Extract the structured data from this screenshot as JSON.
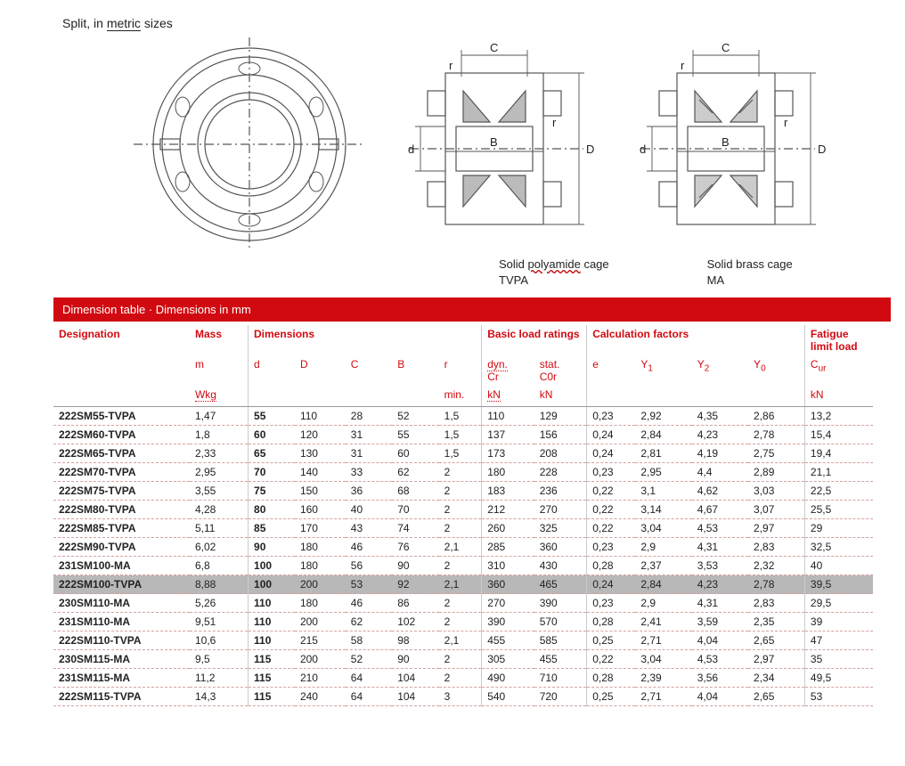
{
  "header": {
    "split_text_1": "Split,",
    "split_text_2": "in",
    "split_text_3": "metric",
    "split_text_4": "sizes"
  },
  "captions": {
    "left_line1a": "Solid",
    "left_line1b": "polyamide",
    "left_line1c": "cage",
    "left_line2": "TVPA",
    "right_line1": "Solid brass cage",
    "right_line2": "MA"
  },
  "banner": "Dimension table  ·  Dimensions in mm",
  "table": {
    "group_headers": [
      "Designation",
      "Mass",
      "Dimensions",
      "",
      "",
      "",
      "Basic load ratings",
      "",
      "Calculation factors",
      "",
      "",
      "",
      "Fatigue limit load"
    ],
    "sub_headers": [
      "",
      "m",
      "d",
      "D",
      "C",
      "B",
      "r",
      "dyn. Cr",
      "stat. C0r",
      "e",
      "Y1",
      "Y2",
      "Y0",
      "Cur"
    ],
    "unit_headers": [
      "",
      "Wkg",
      "",
      "",
      "",
      "",
      "min.",
      "kN",
      "kN",
      "",
      "",
      "",
      "",
      "kN"
    ],
    "sub_labels": {
      "m": "m",
      "d": "d",
      "D": "D",
      "C": "C",
      "B": "B",
      "r": "r",
      "dyn": "dyn.",
      "Cr": "Cr",
      "stat": "stat.",
      "C0r": "C0r",
      "e": "e",
      "Y1": "Y",
      "Y1sub": "1",
      "Y2": "Y",
      "Y2sub": "2",
      "Y0": "Y",
      "Y0sub": "0",
      "Cur": "C",
      "Cursub": "ur",
      "Wkg": "Wkg",
      "min": "min.",
      "kN": "kN"
    },
    "rows": [
      {
        "d0": "222SM55-TVPA",
        "m": "1,47",
        "d": "55",
        "D": "110",
        "C": "28",
        "B": "52",
        "r": "1,5",
        "dyn": "110",
        "stat": "129",
        "e": "0,23",
        "Y1": "2,92",
        "Y2": "4,35",
        "Y0": "2,86",
        "Cur": "13,2"
      },
      {
        "d0": "222SM60-TVPA",
        "m": "1,8",
        "d": "60",
        "D": "120",
        "C": "31",
        "B": "55",
        "r": "1,5",
        "dyn": "137",
        "stat": "156",
        "e": "0,24",
        "Y1": "2,84",
        "Y2": "4,23",
        "Y0": "2,78",
        "Cur": "15,4"
      },
      {
        "d0": "222SM65-TVPA",
        "m": "2,33",
        "d": "65",
        "D": "130",
        "C": "31",
        "B": "60",
        "r": "1,5",
        "dyn": "173",
        "stat": "208",
        "e": "0,24",
        "Y1": "2,81",
        "Y2": "4,19",
        "Y0": "2,75",
        "Cur": "19,4"
      },
      {
        "d0": "222SM70-TVPA",
        "m": "2,95",
        "d": "70",
        "D": "140",
        "C": "33",
        "B": "62",
        "r": "2",
        "dyn": "180",
        "stat": "228",
        "e": "0,23",
        "Y1": "2,95",
        "Y2": "4,4",
        "Y0": "2,89",
        "Cur": "21,1"
      },
      {
        "d0": "222SM75-TVPA",
        "m": "3,55",
        "d": "75",
        "D": "150",
        "C": "36",
        "B": "68",
        "r": "2",
        "dyn": "183",
        "stat": "236",
        "e": "0,22",
        "Y1": "3,1",
        "Y2": "4,62",
        "Y0": "3,03",
        "Cur": "22,5"
      },
      {
        "d0": "222SM80-TVPA",
        "m": "4,28",
        "d": "80",
        "D": "160",
        "C": "40",
        "B": "70",
        "r": "2",
        "dyn": "212",
        "stat": "270",
        "e": "0,22",
        "Y1": "3,14",
        "Y2": "4,67",
        "Y0": "3,07",
        "Cur": "25,5"
      },
      {
        "d0": "222SM85-TVPA",
        "m": "5,11",
        "d": "85",
        "D": "170",
        "C": "43",
        "B": "74",
        "r": "2",
        "dyn": "260",
        "stat": "325",
        "e": "0,22",
        "Y1": "3,04",
        "Y2": "4,53",
        "Y0": "2,97",
        "Cur": "29"
      },
      {
        "d0": "222SM90-TVPA",
        "m": "6,02",
        "d": "90",
        "D": "180",
        "C": "46",
        "B": "76",
        "r": "2,1",
        "dyn": "285",
        "stat": "360",
        "e": "0,23",
        "Y1": "2,9",
        "Y2": "4,31",
        "Y0": "2,83",
        "Cur": "32,5"
      },
      {
        "d0": "231SM100-MA",
        "m": "6,8",
        "d": "100",
        "D": "180",
        "C": "56",
        "B": "90",
        "r": "2",
        "dyn": "310",
        "stat": "430",
        "e": "0,28",
        "Y1": "2,37",
        "Y2": "3,53",
        "Y0": "2,32",
        "Cur": "40"
      },
      {
        "d0": "222SM100-TVPA",
        "m": "8,88",
        "d": "100",
        "D": "200",
        "C": "53",
        "B": "92",
        "r": "2,1",
        "dyn": "360",
        "stat": "465",
        "e": "0,24",
        "Y1": "2,84",
        "Y2": "4,23",
        "Y0": "2,78",
        "Cur": "39,5",
        "hl": true
      },
      {
        "d0": "230SM110-MA",
        "m": "5,26",
        "d": "110",
        "D": "180",
        "C": "46",
        "B": "86",
        "r": "2",
        "dyn": "270",
        "stat": "390",
        "e": "0,23",
        "Y1": "2,9",
        "Y2": "4,31",
        "Y0": "2,83",
        "Cur": "29,5"
      },
      {
        "d0": "231SM110-MA",
        "m": "9,51",
        "d": "110",
        "D": "200",
        "C": "62",
        "B": "102",
        "r": "2",
        "dyn": "390",
        "stat": "570",
        "e": "0,28",
        "Y1": "2,41",
        "Y2": "3,59",
        "Y0": "2,35",
        "Cur": "39"
      },
      {
        "d0": "222SM110-TVPA",
        "m": "10,6",
        "d": "110",
        "D": "215",
        "C": "58",
        "B": "98",
        "r": "2,1",
        "dyn": "455",
        "stat": "585",
        "e": "0,25",
        "Y1": "2,71",
        "Y2": "4,04",
        "Y0": "2,65",
        "Cur": "47"
      },
      {
        "d0": "230SM115-MA",
        "m": "9,5",
        "d": "115",
        "D": "200",
        "C": "52",
        "B": "90",
        "r": "2",
        "dyn": "305",
        "stat": "455",
        "e": "0,22",
        "Y1": "3,04",
        "Y2": "4,53",
        "Y0": "2,97",
        "Cur": "35"
      },
      {
        "d0": "231SM115-MA",
        "m": "11,2",
        "d": "115",
        "D": "210",
        "C": "64",
        "B": "104",
        "r": "2",
        "dyn": "490",
        "stat": "710",
        "e": "0,28",
        "Y1": "2,39",
        "Y2": "3,56",
        "Y0": "2,34",
        "Cur": "49,5"
      },
      {
        "d0": "222SM115-TVPA",
        "m": "14,3",
        "d": "115",
        "D": "240",
        "C": "64",
        "B": "104",
        "r": "3",
        "dyn": "540",
        "stat": "720",
        "e": "0,25",
        "Y1": "2,71",
        "Y2": "4,04",
        "Y0": "2,65",
        "Cur": "53"
      }
    ]
  },
  "colors": {
    "accent": "#d10a11",
    "row_dash": "#d8a0a0",
    "highlight": "#b8b8b8",
    "text": "#222222",
    "diagram_stroke": "#555555"
  }
}
